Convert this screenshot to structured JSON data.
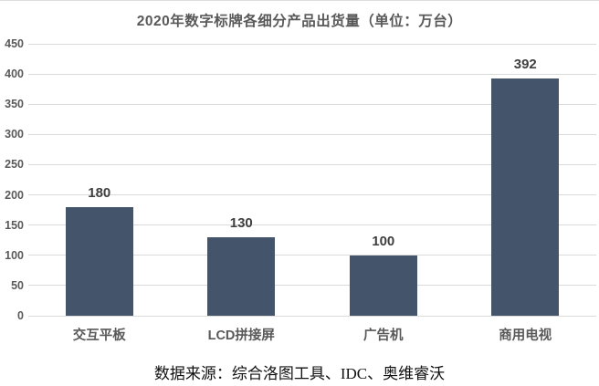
{
  "title": "2020年数字标牌各细分产品出货量（单位：万台）",
  "source_note": "数据来源：综合洛图工具、IDC、奥维睿沃",
  "colors": {
    "bar": "#44546a",
    "gridline": "#dadada",
    "title_text": "#595959",
    "tick_text": "#595959",
    "value_label_text": "#3f3f3f",
    "category_text": "#595959",
    "background": "#ffffff"
  },
  "chart_data": {
    "type": "bar",
    "title": "2020年数字标牌各细分产品出货量（单位：万台）",
    "categories": [
      "交互平板",
      "LCD拼接屏",
      "广告机",
      "商用电视"
    ],
    "values": [
      180,
      130,
      100,
      392
    ],
    "xlabel": "",
    "ylabel": "",
    "ylim": [
      0,
      450
    ],
    "yticks": [
      0,
      50,
      100,
      150,
      200,
      250,
      300,
      350,
      400,
      450
    ],
    "grid": true,
    "legend": false,
    "data_labels": [
      "180",
      "130",
      "100",
      "392"
    ],
    "tick_labels": [
      "0",
      "50",
      "100",
      "150",
      "200",
      "250",
      "300",
      "350",
      "400",
      "450"
    ]
  }
}
